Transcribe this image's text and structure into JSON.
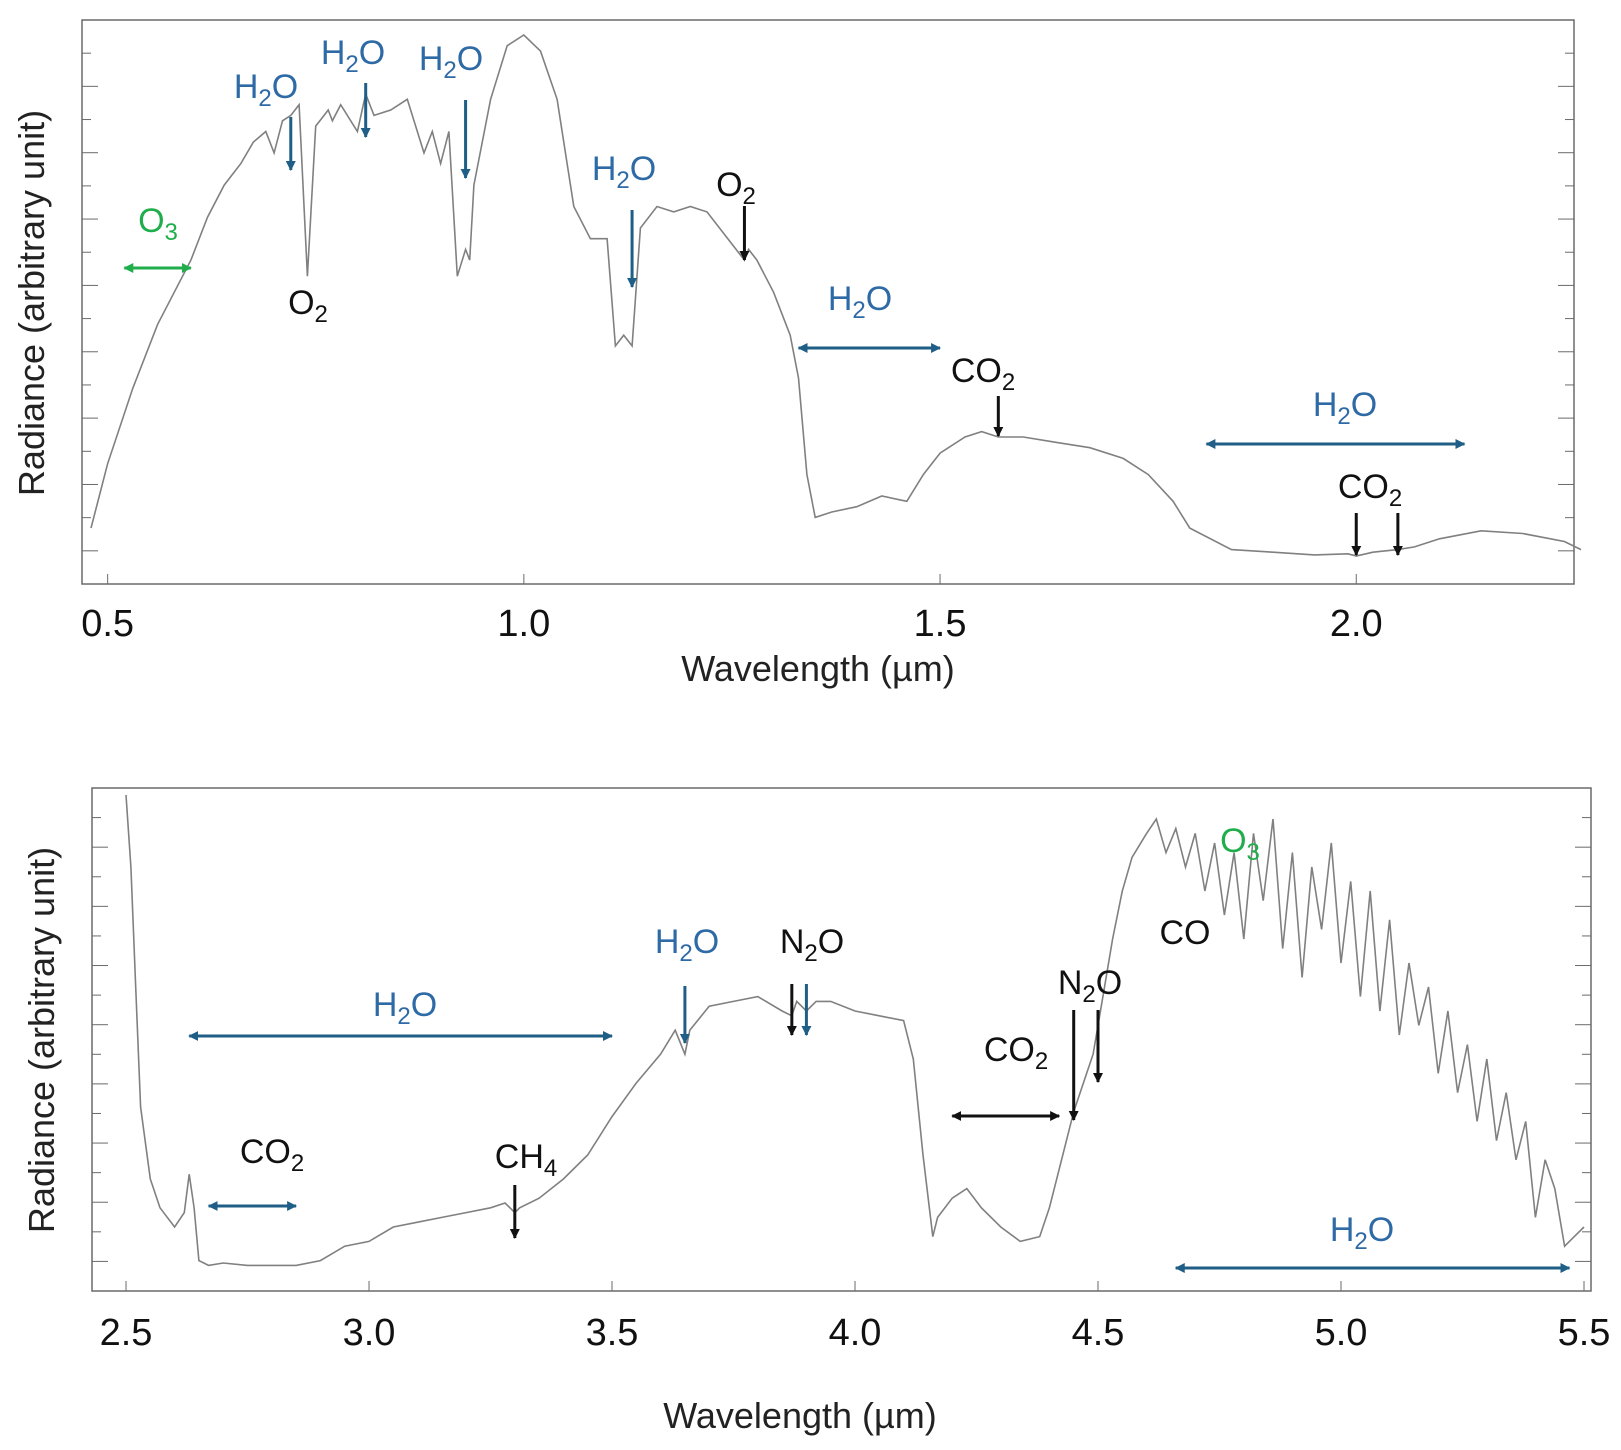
{
  "colors": {
    "spectrum": "#808080",
    "frame": "#6a6a6a",
    "water": "#1f5e86",
    "water_text": "#2e6aa6",
    "ozone": "#1fae4b",
    "black": "#111111"
  },
  "chart_data": [
    {
      "type": "line",
      "title": "",
      "xlabel": "Wavelength (µm)",
      "ylabel": "Radiance (arbitrary unit)",
      "xlim": [
        0.48,
        2.27
      ],
      "ylim": [
        0,
        1
      ],
      "grid": false,
      "xticks": [
        0.5,
        1.0,
        1.5,
        2.0
      ],
      "xtick_labels": [
        "0.5",
        "1.0",
        "1.5",
        "2.0"
      ],
      "series": [
        {
          "x": [
            0.48,
            0.5,
            0.53,
            0.56,
            0.6,
            0.62,
            0.64,
            0.66,
            0.675,
            0.69,
            0.7,
            0.71,
            0.72,
            0.73,
            0.74,
            0.75,
            0.76,
            0.765,
            0.77,
            0.78,
            0.8,
            0.81,
            0.82,
            0.84,
            0.86,
            0.88,
            0.89,
            0.9,
            0.91,
            0.92,
            0.93,
            0.935,
            0.94,
            0.96,
            0.98,
            1.0,
            1.02,
            1.04,
            1.06,
            1.08,
            1.1,
            1.11,
            1.12,
            1.13,
            1.14,
            1.16,
            1.18,
            1.2,
            1.22,
            1.25,
            1.265,
            1.27,
            1.28,
            1.3,
            1.32,
            1.33,
            1.34,
            1.35,
            1.37,
            1.4,
            1.43,
            1.46,
            1.48,
            1.5,
            1.53,
            1.55,
            1.57,
            1.6,
            1.64,
            1.68,
            1.72,
            1.75,
            1.78,
            1.8,
            1.85,
            1.9,
            1.95,
            1.99,
            2.0,
            2.02,
            2.05,
            2.07,
            2.1,
            2.15,
            2.2,
            2.25,
            2.27
          ],
          "y": [
            0.08,
            0.2,
            0.34,
            0.46,
            0.58,
            0.66,
            0.72,
            0.76,
            0.8,
            0.82,
            0.78,
            0.84,
            0.85,
            0.87,
            0.55,
            0.83,
            0.85,
            0.86,
            0.84,
            0.87,
            0.82,
            0.89,
            0.85,
            0.86,
            0.88,
            0.78,
            0.82,
            0.76,
            0.82,
            0.55,
            0.6,
            0.58,
            0.72,
            0.88,
            0.98,
            1.0,
            0.97,
            0.88,
            0.68,
            0.62,
            0.62,
            0.42,
            0.44,
            0.42,
            0.64,
            0.68,
            0.67,
            0.68,
            0.67,
            0.61,
            0.58,
            0.6,
            0.58,
            0.52,
            0.44,
            0.36,
            0.18,
            0.1,
            0.11,
            0.12,
            0.14,
            0.13,
            0.18,
            0.22,
            0.25,
            0.26,
            0.25,
            0.25,
            0.24,
            0.23,
            0.21,
            0.18,
            0.13,
            0.08,
            0.04,
            0.035,
            0.03,
            0.032,
            0.028,
            0.035,
            0.04,
            0.045,
            0.06,
            0.075,
            0.07,
            0.055,
            0.04
          ]
        }
      ],
      "annotations": [
        {
          "label": "H",
          "sub": "2",
          "label_end": "O",
          "species": "water",
          "arrow": "down",
          "x": 0.72
        },
        {
          "label": "H",
          "sub": "2",
          "label_end": "O",
          "species": "water",
          "arrow": "down",
          "x": 0.81
        },
        {
          "label": "H",
          "sub": "2",
          "label_end": "O",
          "species": "water",
          "arrow": "down",
          "x": 0.93
        },
        {
          "label": "H",
          "sub": "2",
          "label_end": "O",
          "species": "water",
          "arrow": "down",
          "x": 1.13
        },
        {
          "label": "O",
          "sub": "2",
          "label_end": "",
          "species": "black",
          "arrow": "down",
          "x": 1.265
        },
        {
          "label": "O",
          "sub": "2",
          "label_end": "",
          "species": "black",
          "arrow": "none",
          "x": 0.76
        },
        {
          "label": "O",
          "sub": "3",
          "label_end": "",
          "species": "ozone",
          "arrow": "range",
          "x_range": [
            0.52,
            0.6
          ]
        },
        {
          "label": "H",
          "sub": "2",
          "label_end": "O",
          "species": "water",
          "arrow": "range",
          "x_range": [
            1.33,
            1.5
          ]
        },
        {
          "label": "CO",
          "sub": "2",
          "label_end": "",
          "species": "black",
          "arrow": "down",
          "x": 1.57
        },
        {
          "label": "H",
          "sub": "2",
          "label_end": "O",
          "species": "water",
          "arrow": "range",
          "x_range": [
            1.82,
            2.13
          ]
        },
        {
          "label": "CO",
          "sub": "2",
          "label_end": "",
          "species": "black",
          "arrow": "down",
          "x": 2.0
        },
        {
          "label": "",
          "sub": "",
          "label_end": "",
          "species": "black",
          "arrow": "down",
          "x": 2.05
        }
      ]
    },
    {
      "type": "line",
      "title": "",
      "xlabel": "Wavelength (µm)",
      "ylabel": "Radiance (arbitrary unit)",
      "xlim": [
        2.43,
        5.5
      ],
      "ylim": [
        0,
        1
      ],
      "grid": false,
      "xticks": [
        2.5,
        3.0,
        3.5,
        4.0,
        4.5,
        5.0,
        5.5
      ],
      "xtick_labels": [
        "2.5",
        "3.0",
        "3.5",
        "4.0",
        "4.5",
        "5.0",
        "5.5"
      ],
      "series": [
        {
          "x": [
            2.5,
            2.51,
            2.52,
            2.53,
            2.55,
            2.57,
            2.6,
            2.62,
            2.63,
            2.64,
            2.65,
            2.67,
            2.7,
            2.75,
            2.8,
            2.85,
            2.9,
            2.95,
            3.0,
            3.05,
            3.1,
            3.15,
            3.2,
            3.25,
            3.28,
            3.3,
            3.31,
            3.35,
            3.4,
            3.45,
            3.5,
            3.55,
            3.6,
            3.63,
            3.65,
            3.66,
            3.7,
            3.75,
            3.8,
            3.85,
            3.87,
            3.88,
            3.9,
            3.92,
            3.95,
            4.0,
            4.05,
            4.1,
            4.12,
            4.14,
            4.16,
            4.17,
            4.2,
            4.23,
            4.26,
            4.3,
            4.34,
            4.38,
            4.4,
            4.43,
            4.45,
            4.47,
            4.49,
            4.51,
            4.53,
            4.55,
            4.57,
            4.6,
            4.62,
            4.64,
            4.66,
            4.68,
            4.7,
            4.72,
            4.74,
            4.76,
            4.78,
            4.8,
            4.82,
            4.84,
            4.86,
            4.88,
            4.9,
            4.92,
            4.94,
            4.96,
            4.98,
            5.0,
            5.02,
            5.04,
            5.06,
            5.08,
            5.1,
            5.12,
            5.14,
            5.16,
            5.18,
            5.2,
            5.22,
            5.24,
            5.26,
            5.28,
            5.3,
            5.32,
            5.34,
            5.36,
            5.38,
            5.4,
            5.42,
            5.44,
            5.46,
            5.48,
            5.5
          ],
          "y": [
            1.0,
            0.85,
            0.6,
            0.35,
            0.2,
            0.14,
            0.1,
            0.13,
            0.21,
            0.14,
            0.03,
            0.02,
            0.025,
            0.02,
            0.02,
            0.02,
            0.03,
            0.06,
            0.07,
            0.1,
            0.11,
            0.12,
            0.13,
            0.14,
            0.15,
            0.13,
            0.14,
            0.16,
            0.2,
            0.25,
            0.33,
            0.4,
            0.46,
            0.51,
            0.46,
            0.51,
            0.56,
            0.57,
            0.58,
            0.55,
            0.54,
            0.57,
            0.55,
            0.57,
            0.57,
            0.55,
            0.54,
            0.53,
            0.45,
            0.25,
            0.08,
            0.12,
            0.16,
            0.18,
            0.14,
            0.1,
            0.07,
            0.08,
            0.14,
            0.26,
            0.34,
            0.4,
            0.46,
            0.58,
            0.7,
            0.8,
            0.87,
            0.92,
            0.95,
            0.88,
            0.93,
            0.85,
            0.92,
            0.8,
            0.9,
            0.75,
            0.88,
            0.7,
            0.92,
            0.78,
            0.95,
            0.68,
            0.88,
            0.62,
            0.85,
            0.72,
            0.9,
            0.65,
            0.82,
            0.58,
            0.8,
            0.55,
            0.74,
            0.5,
            0.65,
            0.52,
            0.6,
            0.42,
            0.55,
            0.38,
            0.48,
            0.32,
            0.45,
            0.28,
            0.38,
            0.24,
            0.32,
            0.12,
            0.24,
            0.18,
            0.06,
            0.08,
            0.1
          ]
        }
      ],
      "annotations": [
        {
          "label": "H",
          "sub": "2",
          "label_end": "O",
          "species": "water",
          "arrow": "range",
          "x_range": [
            2.63,
            3.5
          ]
        },
        {
          "label": "CO",
          "sub": "2",
          "label_end": "",
          "species": "black",
          "arrow": "none",
          "x": 2.77
        },
        {
          "label": "",
          "sub": "",
          "label_end": "",
          "species": "water",
          "arrow": "range",
          "x_range": [
            2.67,
            2.85
          ]
        },
        {
          "label": "CH",
          "sub": "4",
          "label_end": "",
          "species": "black",
          "arrow": "down",
          "x": 3.3
        },
        {
          "label": "H",
          "sub": "2",
          "label_end": "O",
          "species": "water",
          "arrow": "down",
          "x": 3.65
        },
        {
          "label": "N",
          "sub": "2",
          "label_end": "O",
          "species": "black",
          "arrow": "down",
          "x": 3.87
        },
        {
          "label": "",
          "sub": "",
          "label_end": "",
          "species": "water",
          "arrow": "down",
          "x": 3.9
        },
        {
          "label": "CO",
          "sub": "2",
          "label_end": "",
          "species": "black",
          "arrow": "range",
          "x_range": [
            4.2,
            4.42
          ]
        },
        {
          "label": "N",
          "sub": "2",
          "label_end": "O",
          "species": "black",
          "arrow": "down",
          "x": 4.45
        },
        {
          "label": "",
          "sub": "",
          "label_end": "",
          "species": "black",
          "arrow": "down",
          "x": 4.5
        },
        {
          "label": "CO",
          "sub": "",
          "label_end": "",
          "species": "black",
          "arrow": "none",
          "x": 4.69
        },
        {
          "label": "O",
          "sub": "3",
          "label_end": "",
          "species": "ozone",
          "arrow": "none",
          "x": 4.8
        },
        {
          "label": "H",
          "sub": "2",
          "label_end": "O",
          "species": "water",
          "arrow": "range",
          "x_range": [
            4.66,
            5.47
          ]
        }
      ]
    }
  ]
}
